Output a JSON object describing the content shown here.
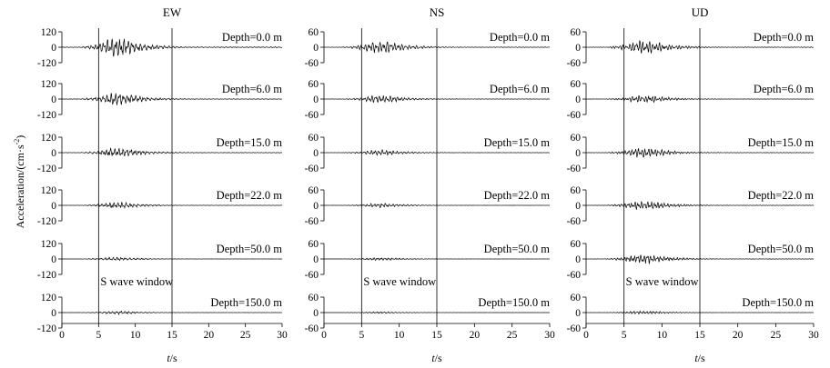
{
  "chart_data": {
    "type": "line",
    "ylabel": "Acceleration/(cm·s",
    "ylabel_sup": "-2",
    "ylabel_end": ")",
    "xlabel_italic": "t",
    "xlabel_rest": "/s",
    "xlim": [
      0,
      30
    ],
    "x_ticks": [
      "0",
      "5",
      "10",
      "15",
      "20",
      "25",
      "30"
    ],
    "s_wave_window": {
      "start": 5,
      "end": 15,
      "label": "S wave window"
    },
    "depth_labels": [
      "Depth=0.0 m",
      "Depth=6.0 m",
      "Depth=15.0 m",
      "Depth=22.0 m",
      "Depth=50.0 m",
      "Depth=150.0 m"
    ],
    "panels": [
      {
        "title": "EW",
        "ylim": [
          -120,
          120
        ],
        "y_ticks": [
          "120",
          "0",
          "-120"
        ],
        "series": [
          {
            "depth": "Depth=0.0 m",
            "peak": 110
          },
          {
            "depth": "Depth=6.0 m",
            "peak": 70
          },
          {
            "depth": "Depth=15.0 m",
            "peak": 55
          },
          {
            "depth": "Depth=22.0 m",
            "peak": 35
          },
          {
            "depth": "Depth=50.0 m",
            "peak": 20
          },
          {
            "depth": "Depth=150.0 m",
            "peak": 18
          }
        ]
      },
      {
        "title": "NS",
        "ylim": [
          -60,
          60
        ],
        "y_ticks": [
          "60",
          "0",
          "-60"
        ],
        "series": [
          {
            "depth": "Depth=0.0 m",
            "peak": 35
          },
          {
            "depth": "Depth=6.0 m",
            "peak": 22
          },
          {
            "depth": "Depth=15.0 m",
            "peak": 15
          },
          {
            "depth": "Depth=22.0 m",
            "peak": 12
          },
          {
            "depth": "Depth=50.0 m",
            "peak": 8
          },
          {
            "depth": "Depth=150.0 m",
            "peak": 5
          }
        ]
      },
      {
        "title": "UD",
        "ylim": [
          -60,
          60
        ],
        "y_ticks": [
          "60",
          "0",
          "-60"
        ],
        "series": [
          {
            "depth": "Depth=0.0 m",
            "peak": 40
          },
          {
            "depth": "Depth=6.0 m",
            "peak": 22
          },
          {
            "depth": "Depth=15.0 m",
            "peak": 28
          },
          {
            "depth": "Depth=22.0 m",
            "peak": 28
          },
          {
            "depth": "Depth=50.0 m",
            "peak": 28
          },
          {
            "depth": "Depth=150.0 m",
            "peak": 10
          }
        ]
      }
    ]
  }
}
